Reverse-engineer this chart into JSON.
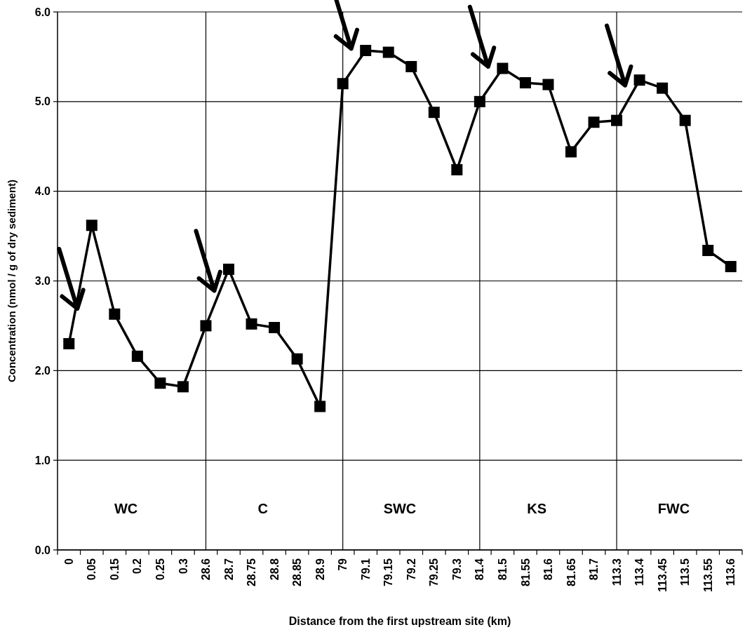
{
  "chart_data": {
    "type": "line",
    "xlabel": "Distance from the first upstream site (km)",
    "ylabel": "Concentration (nmol / g of dry sediment)",
    "categories": [
      "0",
      "0.05",
      "0.15",
      "0.2",
      "0.25",
      "0.3",
      "28.6",
      "28.7",
      "28.75",
      "28.8",
      "28.85",
      "28.9",
      "79",
      "79.1",
      "79.15",
      "79.2",
      "79.25",
      "79.3",
      "81.4",
      "81.5",
      "81.55",
      "81.6",
      "81.65",
      "81.7",
      "113.3",
      "113.4",
      "113.45",
      "113.5",
      "113.55",
      "113.6"
    ],
    "series": [
      {
        "color": "#000000",
        "values": [
          2.3,
          3.62,
          2.63,
          2.16,
          1.86,
          1.82,
          2.5,
          3.13,
          2.52,
          2.48,
          2.13,
          1.6,
          5.2,
          5.57,
          5.55,
          5.39,
          4.88,
          4.24,
          5.0,
          5.37,
          5.21,
          5.19,
          4.44,
          4.77,
          4.79,
          5.24,
          5.15,
          4.79,
          3.34,
          3.16
        ]
      }
    ],
    "ylim": [
      0,
      6
    ],
    "yticks": [
      {
        "value": 0,
        "label": "0.0"
      },
      {
        "value": 1,
        "label": "1.0"
      },
      {
        "value": 2,
        "label": "2.0"
      },
      {
        "value": 3,
        "label": "3.0"
      },
      {
        "value": 4,
        "label": "4.0"
      },
      {
        "value": 5,
        "label": "5.0"
      },
      {
        "value": 6,
        "label": "6.0"
      }
    ],
    "ref_lines": [
      {
        "axis": "x",
        "value": "28.6"
      },
      {
        "axis": "x",
        "value": "79"
      },
      {
        "axis": "x",
        "value": "81.4"
      },
      {
        "axis": "x",
        "value": "113.3"
      }
    ],
    "annotations": [
      "WC",
      "C",
      "SWC",
      "KS",
      "FWC"
    ],
    "grid": "y",
    "marker": "square",
    "line_style": "solid"
  }
}
